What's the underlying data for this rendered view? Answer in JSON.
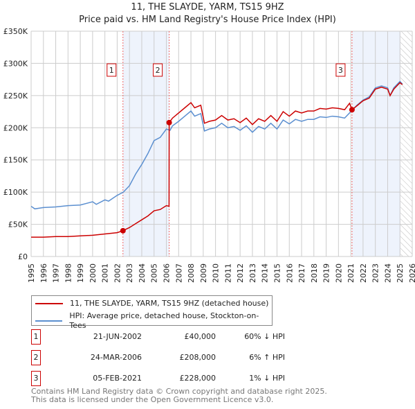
{
  "title": "11, THE SLAYDE, YARM, TS15 9HZ",
  "subtitle": "Price paid vs. HM Land Registry's House Price Index (HPI)",
  "chart_data": {
    "type": "line",
    "title": "11, THE SLAYDE, YARM, TS15 9HZ",
    "subtitle": "Price paid vs. HM Land Registry's House Price Index (HPI)",
    "xlim": [
      1995,
      2026
    ],
    "ylim": [
      0,
      350000
    ],
    "x_ticks": [
      "1995",
      "1996",
      "1997",
      "1998",
      "1999",
      "2000",
      "2001",
      "2002",
      "2003",
      "2004",
      "2005",
      "2006",
      "2007",
      "2008",
      "2009",
      "2010",
      "2011",
      "2012",
      "2013",
      "2014",
      "2015",
      "2016",
      "2017",
      "2018",
      "2019",
      "2020",
      "2021",
      "2022",
      "2023",
      "2024",
      "2025",
      "2026"
    ],
    "y_ticks": [
      {
        "v": 0,
        "label": "£0"
      },
      {
        "v": 50000,
        "label": "£50K"
      },
      {
        "v": 100000,
        "label": "£100K"
      },
      {
        "v": 150000,
        "label": "£150K"
      },
      {
        "v": 200000,
        "label": "£200K"
      },
      {
        "v": 250000,
        "label": "£250K"
      },
      {
        "v": 300000,
        "label": "£300K"
      },
      {
        "v": 350000,
        "label": "£350K"
      }
    ],
    "grid": true,
    "series": [
      {
        "name": "11, THE SLAYDE, YARM, TS15 9HZ (detached house)",
        "color": "#cc0000",
        "x": [
          1995,
          1996,
          1997,
          1998,
          1999,
          2000,
          2001,
          2002,
          2002.47,
          2003,
          2003.5,
          2004,
          2004.5,
          2005,
          2005.5,
          2006,
          2006.22,
          2006.23,
          2006.5,
          2007,
          2007.5,
          2008,
          2008.3,
          2008.8,
          2009.1,
          2009.5,
          2010,
          2010.5,
          2011,
          2011.5,
          2012,
          2012.5,
          2013,
          2013.5,
          2014,
          2014.5,
          2015,
          2015.5,
          2016,
          2016.5,
          2017,
          2017.5,
          2018,
          2018.5,
          2019,
          2019.5,
          2020,
          2020.5,
          2020.9,
          2021.1,
          2021.5,
          2022,
          2022.5,
          2023,
          2023.5,
          2024,
          2024.2,
          2024.5,
          2025,
          2025.2
        ],
        "y": [
          30000,
          30000,
          31000,
          31000,
          32000,
          33000,
          35000,
          37000,
          40000,
          45000,
          51000,
          57000,
          63000,
          71000,
          73000,
          79000,
          78000,
          208000,
          215000,
          223000,
          231000,
          239000,
          231000,
          235000,
          207000,
          210000,
          212000,
          219000,
          212000,
          214000,
          208000,
          215000,
          205000,
          214000,
          210000,
          219000,
          210000,
          225000,
          218000,
          226000,
          223000,
          226000,
          226000,
          230000,
          229000,
          231000,
          230000,
          228000,
          238000,
          228000,
          234000,
          242000,
          246000,
          260000,
          263000,
          260000,
          250000,
          260000,
          270000,
          267000
        ]
      },
      {
        "name": "HPI: Average price, detached house, Stockton-on-Tees",
        "color": "#5b8fd0",
        "x": [
          1995,
          1995.3,
          1996,
          1997,
          1998,
          1999,
          2000,
          2000.3,
          2001,
          2001.3,
          2002,
          2002.5,
          2003,
          2003.5,
          2004,
          2004.5,
          2005,
          2005.5,
          2006,
          2006.3,
          2006.5,
          2007,
          2007.5,
          2008,
          2008.3,
          2008.8,
          2009.1,
          2009.5,
          2010,
          2010.5,
          2011,
          2011.5,
          2012,
          2012.5,
          2013,
          2013.5,
          2014,
          2014.5,
          2015,
          2015.5,
          2016,
          2016.5,
          2017,
          2017.5,
          2018,
          2018.5,
          2019,
          2019.5,
          2020,
          2020.5,
          2021,
          2021.5,
          2022,
          2022.5,
          2023,
          2023.5,
          2024,
          2024.2,
          2024.5,
          2025,
          2025.2
        ],
        "y": [
          78000,
          74000,
          76000,
          77000,
          79000,
          80000,
          85000,
          81000,
          88000,
          86000,
          95000,
          100000,
          110000,
          128000,
          143000,
          160000,
          180000,
          185000,
          198000,
          196000,
          203000,
          210000,
          218000,
          226000,
          218000,
          222000,
          195000,
          198000,
          200000,
          207000,
          200000,
          202000,
          196000,
          203000,
          193000,
          202000,
          198000,
          207000,
          198000,
          212000,
          206000,
          213000,
          210000,
          213000,
          213000,
          217000,
          216000,
          218000,
          217000,
          215000,
          225000,
          235000,
          243000,
          248000,
          262000,
          265000,
          262000,
          250000,
          262000,
          272000,
          268000
        ]
      }
    ],
    "sales": [
      {
        "n": "1",
        "x": 2002.47,
        "y": 40000,
        "date": "21-JUN-2002",
        "price": "£40,000",
        "hpi": "60% ↓ HPI"
      },
      {
        "n": "2",
        "x": 2006.23,
        "y": 208000,
        "date": "24-MAR-2006",
        "price": "£208,000",
        "hpi": "6% ↑ HPI"
      },
      {
        "n": "3",
        "x": 2021.1,
        "y": 228000,
        "date": "05-FEB-2021",
        "price": "£228,000",
        "hpi": "1% ↓ HPI"
      }
    ],
    "shaded_ranges": [
      [
        2002.47,
        2006.23
      ],
      [
        2021.1,
        2025.05
      ]
    ],
    "future_hatch_from": 2025.05,
    "legend_position": "bottom"
  },
  "footer": [
    "Contains HM Land Registry data © Crown copyright and database right 2025.",
    "This data is licensed under the Open Government Licence v3.0."
  ]
}
